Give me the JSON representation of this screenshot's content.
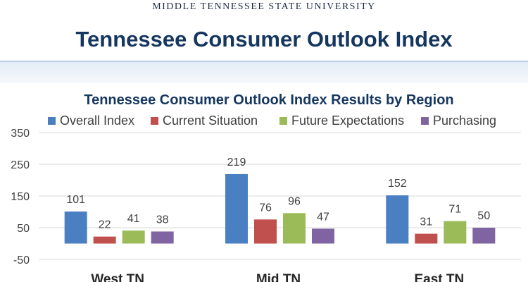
{
  "header": {
    "university": "MIDDLE TENNESSEE STATE UNIVERSITY",
    "title": "Tennessee Consumer Outlook Index"
  },
  "chart_data": {
    "type": "bar",
    "title": "Tennessee Consumer Outlook Index Results by Region",
    "categories": [
      "West TN",
      "Mid TN",
      "East TN"
    ],
    "series": [
      {
        "name": "Overall Index",
        "color": "#4a7fc1",
        "values": [
          101,
          219,
          152
        ]
      },
      {
        "name": "Current Situation",
        "color": "#c0504d",
        "values": [
          22,
          76,
          31
        ]
      },
      {
        "name": "Future Expectations",
        "color": "#9bbb59",
        "values": [
          41,
          96,
          71
        ]
      },
      {
        "name": "Purchasing",
        "color": "#8064a2",
        "values": [
          38,
          47,
          50
        ]
      }
    ],
    "yticks": [
      -50,
      50,
      150,
      250,
      350
    ],
    "ylim": [
      -50,
      350
    ],
    "legend_position": "top",
    "gridlines": true
  }
}
